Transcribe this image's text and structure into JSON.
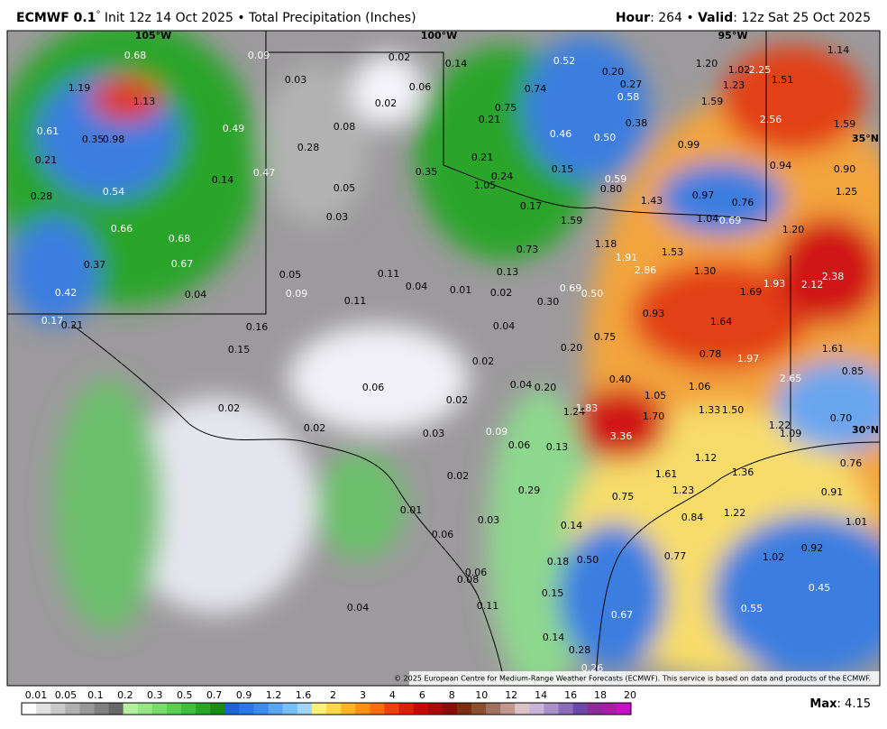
{
  "header": {
    "model": "ECMWF 0.1",
    "degree": "°",
    "description": "Init 12z 14 Oct 2025 • Total Precipitation (Inches)",
    "hour_label": "Hour",
    "hour_value": ": 264 • ",
    "valid_label": "Valid",
    "valid_value": ": 12z Sat 25 Oct 2025"
  },
  "graticule": [
    "105°W",
    "100°W",
    "95°W",
    "35°N",
    "30°N"
  ],
  "map_labels": [
    "0.68",
    "0.09",
    "0.02",
    "0.14",
    "0.52",
    "0.20",
    "1.20",
    "1.02",
    "2.25",
    "1.14",
    "1.19",
    "1.13",
    "0.03",
    "0.06",
    "0.74",
    "0.27",
    "1.23",
    "1.51",
    "0.58",
    "1.59",
    "0.02",
    "0.75",
    "0.21",
    "0.38",
    "2.56",
    "1.59",
    "0.61",
    "0.35",
    "0.98",
    "0.49",
    "0.08",
    "0.46",
    "0.50",
    "0.99",
    "0.28",
    "0.21",
    "0.21",
    "0.94",
    "0.90",
    "0.47",
    "0.14",
    "0.35",
    "1.05",
    "0.24",
    "0.15",
    "0.59",
    "0.80",
    "0.05",
    "0.54",
    "0.28",
    "0.97",
    "0.76",
    "1.25",
    "0.17",
    "1.43",
    "0.03",
    "1.59",
    "1.04",
    "0.69",
    "1.20",
    "0.66",
    "0.68",
    "1.18",
    "0.73",
    "1.53",
    "1.91",
    "0.37",
    "0.67",
    "0.11",
    "0.13",
    "2.86",
    "1.30",
    "2.38",
    "0.05",
    "0.04",
    "0.01",
    "0.02",
    "0.69",
    "0.50",
    "1.93",
    "2.12",
    "1.69",
    "0.42",
    "0.04",
    "0.09",
    "0.11",
    "0.30",
    "0.93",
    "0.17",
    "0.21",
    "0.16",
    "0.04",
    "1.64",
    "0.75",
    "0.15",
    "0.20",
    "1.61",
    "0.78",
    "1.97",
    "0.02",
    "0.85",
    "0.40",
    "2.65",
    "0.06",
    "0.04",
    "0.20",
    "1.06",
    "1.05",
    "0.02",
    "0.02",
    "1.24",
    "1.83",
    "1.33",
    "1.50",
    "1.70",
    "0.70",
    "1.22",
    "1.09",
    "0.02",
    "0.03",
    "0.09",
    "3.36",
    "0.06",
    "0.13",
    "1.12",
    "1.36",
    "0.76",
    "1.61",
    "0.02",
    "1.23",
    "0.29",
    "0.91",
    "0.75",
    "0.01",
    "0.84",
    "1.22",
    "0.03",
    "0.14",
    "1.01",
    "0.06",
    "0.92",
    "0.77",
    "1.02",
    "0.18",
    "0.50",
    "0.06",
    "0.08",
    "0.45",
    "0.15",
    "0.04",
    "0.11",
    "0.55",
    "0.67",
    "0.14",
    "0.28",
    "0.26"
  ],
  "copyright": "© 2025 European Centre for Medium-Range Weather Forecasts (ECMWF). This service is based on data and products of the ECMWF.",
  "legend": {
    "labels": [
      "0.01",
      "0.05",
      "0.1",
      "0.2",
      "0.3",
      "0.5",
      "0.7",
      "0.9",
      "1.2",
      "1.6",
      "2",
      "3",
      "4",
      "6",
      "8",
      "10",
      "12",
      "14",
      "16",
      "18",
      "20"
    ],
    "max_label": "Max",
    "max_value": ": 4.15"
  }
}
